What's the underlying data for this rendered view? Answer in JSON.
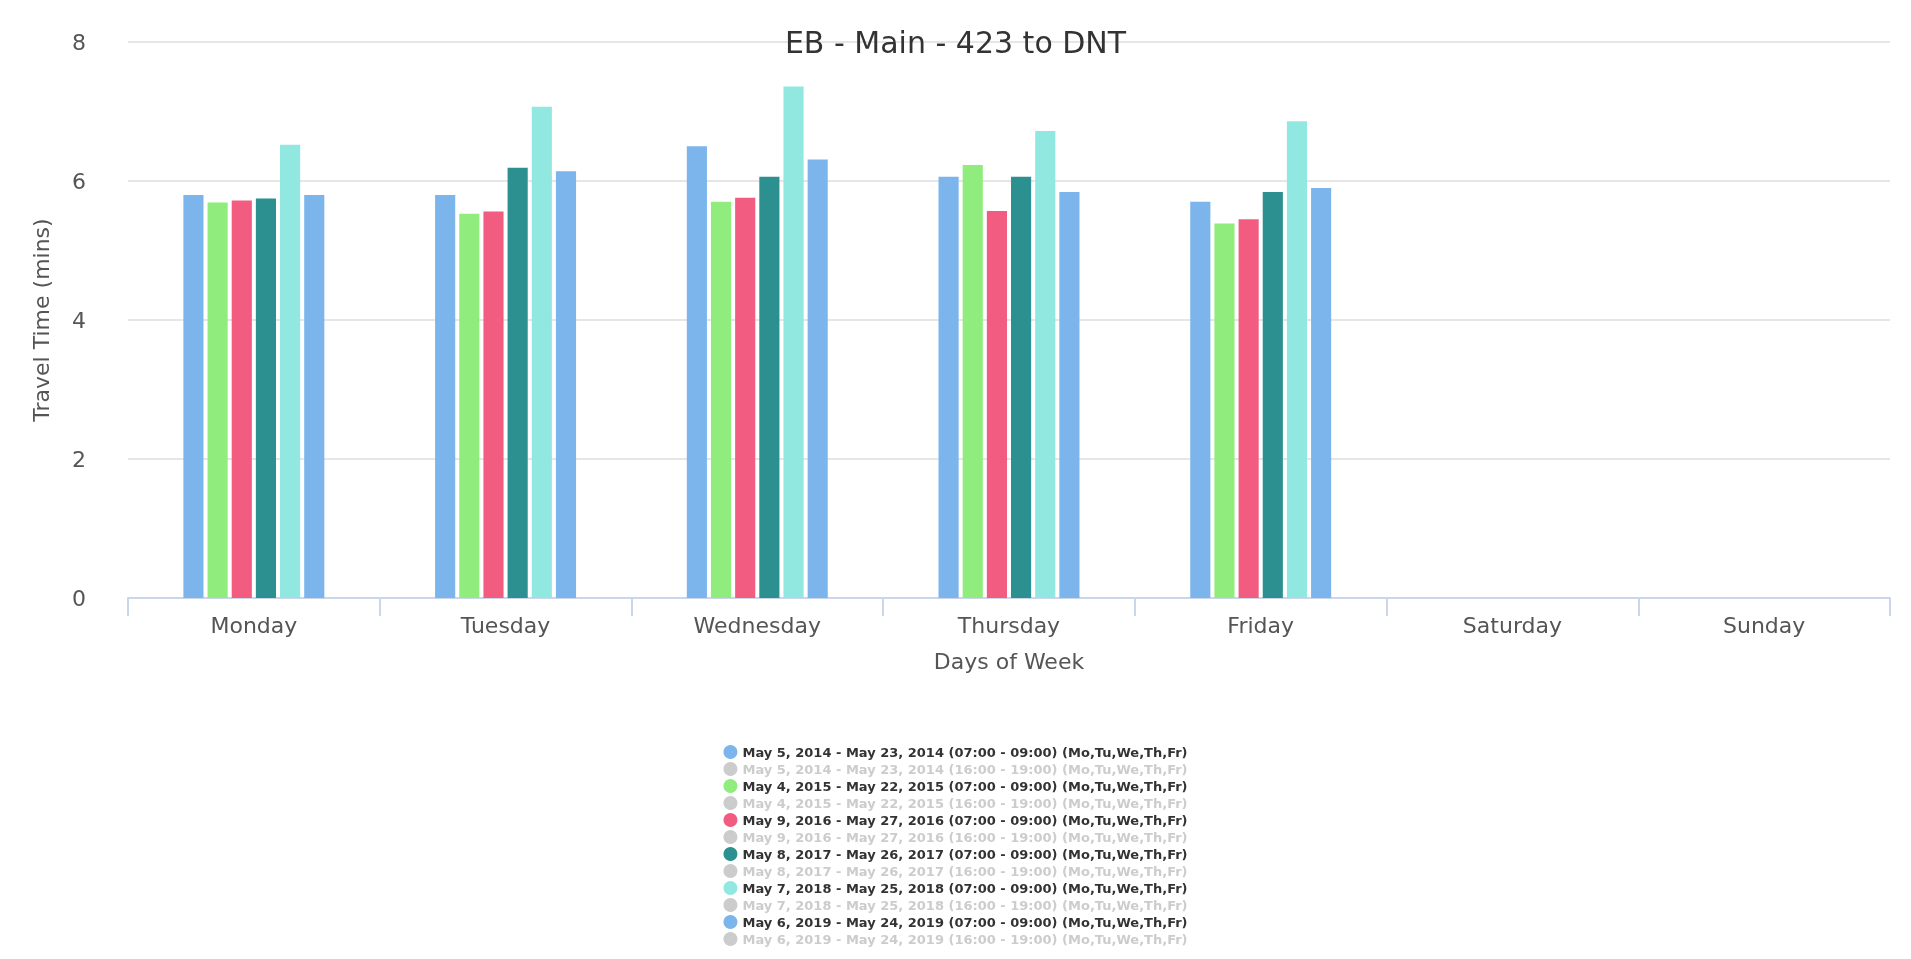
{
  "chart_data": {
    "type": "bar",
    "title": "EB - Main - 423 to DNT",
    "xlabel": "Days of Week",
    "ylabel": "Travel Time (mins)",
    "categories": [
      "Monday",
      "Tuesday",
      "Wednesday",
      "Thursday",
      "Friday",
      "Saturday",
      "Sunday"
    ],
    "ylim": [
      0,
      8
    ],
    "yticks": [
      0,
      2,
      4,
      6,
      8
    ],
    "grid": "y",
    "legend": "bottom",
    "series": [
      {
        "name": "May 5, 2014 - May 23, 2014 (07:00 - 09:00) (Mo,Tu,We,Th,Fr)",
        "color": "#7cb5ec",
        "values": [
          5.8,
          5.8,
          6.5,
          6.06,
          5.7,
          null,
          null
        ]
      },
      {
        "name": "May 5, 2014 - May 23, 2014 (16:00 - 19:00) (Mo,Tu,We,Th,Fr)",
        "color": "#cccccc",
        "values": [
          null,
          null,
          null,
          null,
          null,
          null,
          null
        ]
      },
      {
        "name": "May 4, 2015 - May 22, 2015 (07:00 - 09:00) (Mo,Tu,We,Th,Fr)",
        "color": "#90ed7d",
        "values": [
          5.69,
          5.53,
          5.7,
          6.23,
          5.39,
          null,
          null
        ]
      },
      {
        "name": "May 4, 2015 - May 22, 2015 (16:00 - 19:00) (Mo,Tu,We,Th,Fr)",
        "color": "#cccccc",
        "values": [
          null,
          null,
          null,
          null,
          null,
          null,
          null
        ]
      },
      {
        "name": "May 9, 2016 - May 27, 2016 (07:00 - 09:00) (Mo,Tu,We,Th,Fr)",
        "color": "#f15c80",
        "values": [
          5.72,
          5.56,
          5.76,
          5.57,
          5.45,
          null,
          null
        ]
      },
      {
        "name": "May 9, 2016 - May 27, 2016 (16:00 - 19:00) (Mo,Tu,We,Th,Fr)",
        "color": "#cccccc",
        "values": [
          null,
          null,
          null,
          null,
          null,
          null,
          null
        ]
      },
      {
        "name": "May 8, 2017 - May 26, 2017 (07:00 - 09:00) (Mo,Tu,We,Th,Fr)",
        "color": "#2b908f",
        "values": [
          5.75,
          6.19,
          6.06,
          6.06,
          5.84,
          null,
          null
        ]
      },
      {
        "name": "May 8, 2017 - May 26, 2017 (16:00 - 19:00) (Mo,Tu,We,Th,Fr)",
        "color": "#cccccc",
        "values": [
          null,
          null,
          null,
          null,
          null,
          null,
          null
        ]
      },
      {
        "name": "May 7, 2018 - May 25, 2018 (07:00 - 09:00) (Mo,Tu,We,Th,Fr)",
        "color": "#91e8e1",
        "values": [
          6.52,
          7.07,
          7.36,
          6.72,
          6.86,
          null,
          null
        ]
      },
      {
        "name": "May 7, 2018 - May 25, 2018 (16:00 - 19:00) (Mo,Tu,We,Th,Fr)",
        "color": "#cccccc",
        "values": [
          null,
          null,
          null,
          null,
          null,
          null,
          null
        ]
      },
      {
        "name": "May 6, 2019 - May 24, 2019 (07:00 - 09:00) (Mo,Tu,We,Th,Fr)",
        "color": "#7cb5ec",
        "values": [
          5.8,
          6.14,
          6.31,
          5.84,
          5.9,
          null,
          null
        ]
      },
      {
        "name": "May 6, 2019 - May 24, 2019 (16:00 - 19:00) (Mo,Tu,We,Th,Fr)",
        "color": "#cccccc",
        "values": [
          null,
          null,
          null,
          null,
          null,
          null,
          null
        ]
      }
    ]
  }
}
